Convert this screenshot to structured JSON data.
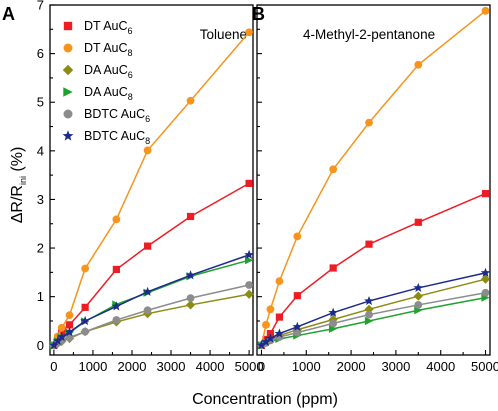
{
  "figure": {
    "ylabel_parts": [
      "ΔR/R",
      "ini",
      " (%)"
    ],
    "xlabel": "Concentration (ppm)"
  },
  "chart_data": [
    {
      "type": "line",
      "panel": "A",
      "title": "Toluene",
      "xlim": [
        -100,
        5100
      ],
      "ylim": [
        -0.2,
        7
      ],
      "xticks": [
        0,
        1000,
        2000,
        3000,
        4000,
        5000
      ],
      "yticks": [
        0,
        1,
        2,
        3,
        4,
        5,
        6,
        7
      ],
      "legend_position": "top-left",
      "x": [
        0,
        100,
        200,
        400,
        800,
        1600,
        2400,
        3500,
        5000
      ],
      "series": [
        {
          "name_main": "DT AuC",
          "name_sub": "6",
          "color": "#ee1c24",
          "marker": "square",
          "values": [
            0,
            0.15,
            0.28,
            0.42,
            0.78,
            1.56,
            2.04,
            2.65,
            3.33
          ]
        },
        {
          "name_main": "DT AuC",
          "name_sub": "8",
          "color": "#f7941d",
          "marker": "circle",
          "values": [
            0,
            0.18,
            0.36,
            0.62,
            1.58,
            2.59,
            4.01,
            5.03,
            6.44
          ]
        },
        {
          "name_main": "DA AuC",
          "name_sub": "6",
          "color": "#8c8c14",
          "marker": "diamond",
          "values": [
            0,
            0.04,
            0.08,
            0.14,
            0.28,
            0.48,
            0.65,
            0.83,
            1.05
          ]
        },
        {
          "name_main": "DA AuC",
          "name_sub": "8",
          "color": "#1fa22e",
          "marker": "triangle",
          "values": [
            0,
            0.08,
            0.16,
            0.26,
            0.49,
            0.84,
            1.08,
            1.42,
            1.75
          ]
        },
        {
          "name_main": "BDTC AuC",
          "name_sub": "6",
          "color": "#8c8c8c",
          "marker": "circle",
          "values": [
            0,
            0.05,
            0.1,
            0.16,
            0.28,
            0.52,
            0.72,
            0.97,
            1.24
          ]
        },
        {
          "name_main": "BDTC AuC",
          "name_sub": "8",
          "color": "#1c2a8c",
          "marker": "star",
          "values": [
            0,
            0.09,
            0.17,
            0.27,
            0.5,
            0.8,
            1.1,
            1.44,
            1.86
          ]
        }
      ]
    },
    {
      "type": "line",
      "panel": "B",
      "title": "4-Methyl-2-pentanone",
      "xlim": [
        -100,
        5100
      ],
      "ylim": [
        -0.2,
        7
      ],
      "xticks": [
        0,
        1000,
        2000,
        3000,
        4000,
        5000
      ],
      "yticks": [
        0,
        1,
        2,
        3,
        4,
        5,
        6,
        7
      ],
      "x": [
        0,
        100,
        200,
        400,
        800,
        1600,
        2400,
        3500,
        5000
      ],
      "series": [
        {
          "name_main": "DT AuC",
          "name_sub": "6",
          "color": "#ee1c24",
          "marker": "square",
          "values": [
            0,
            0.12,
            0.24,
            0.58,
            1.02,
            1.59,
            2.08,
            2.53,
            3.12
          ]
        },
        {
          "name_main": "DT AuC",
          "name_sub": "8",
          "color": "#f7941d",
          "marker": "circle",
          "values": [
            0,
            0.42,
            0.74,
            1.32,
            2.24,
            3.62,
            4.58,
            5.77,
            6.88
          ]
        },
        {
          "name_main": "DA AuC",
          "name_sub": "6",
          "color": "#8c8c14",
          "marker": "diamond",
          "values": [
            0,
            0.06,
            0.12,
            0.2,
            0.32,
            0.53,
            0.74,
            1.01,
            1.36
          ]
        },
        {
          "name_main": "DA AuC",
          "name_sub": "8",
          "color": "#1fa22e",
          "marker": "triangle",
          "values": [
            0,
            0.04,
            0.08,
            0.13,
            0.2,
            0.34,
            0.5,
            0.72,
            0.98
          ]
        },
        {
          "name_main": "BDTC AuC",
          "name_sub": "6",
          "color": "#8c8c8c",
          "marker": "circle",
          "values": [
            0,
            0.05,
            0.1,
            0.17,
            0.26,
            0.45,
            0.63,
            0.83,
            1.08
          ]
        },
        {
          "name_main": "BDTC AuC",
          "name_sub": "8",
          "color": "#1c2a8c",
          "marker": "star",
          "values": [
            0,
            0.07,
            0.14,
            0.24,
            0.38,
            0.67,
            0.91,
            1.18,
            1.49
          ]
        }
      ]
    }
  ]
}
